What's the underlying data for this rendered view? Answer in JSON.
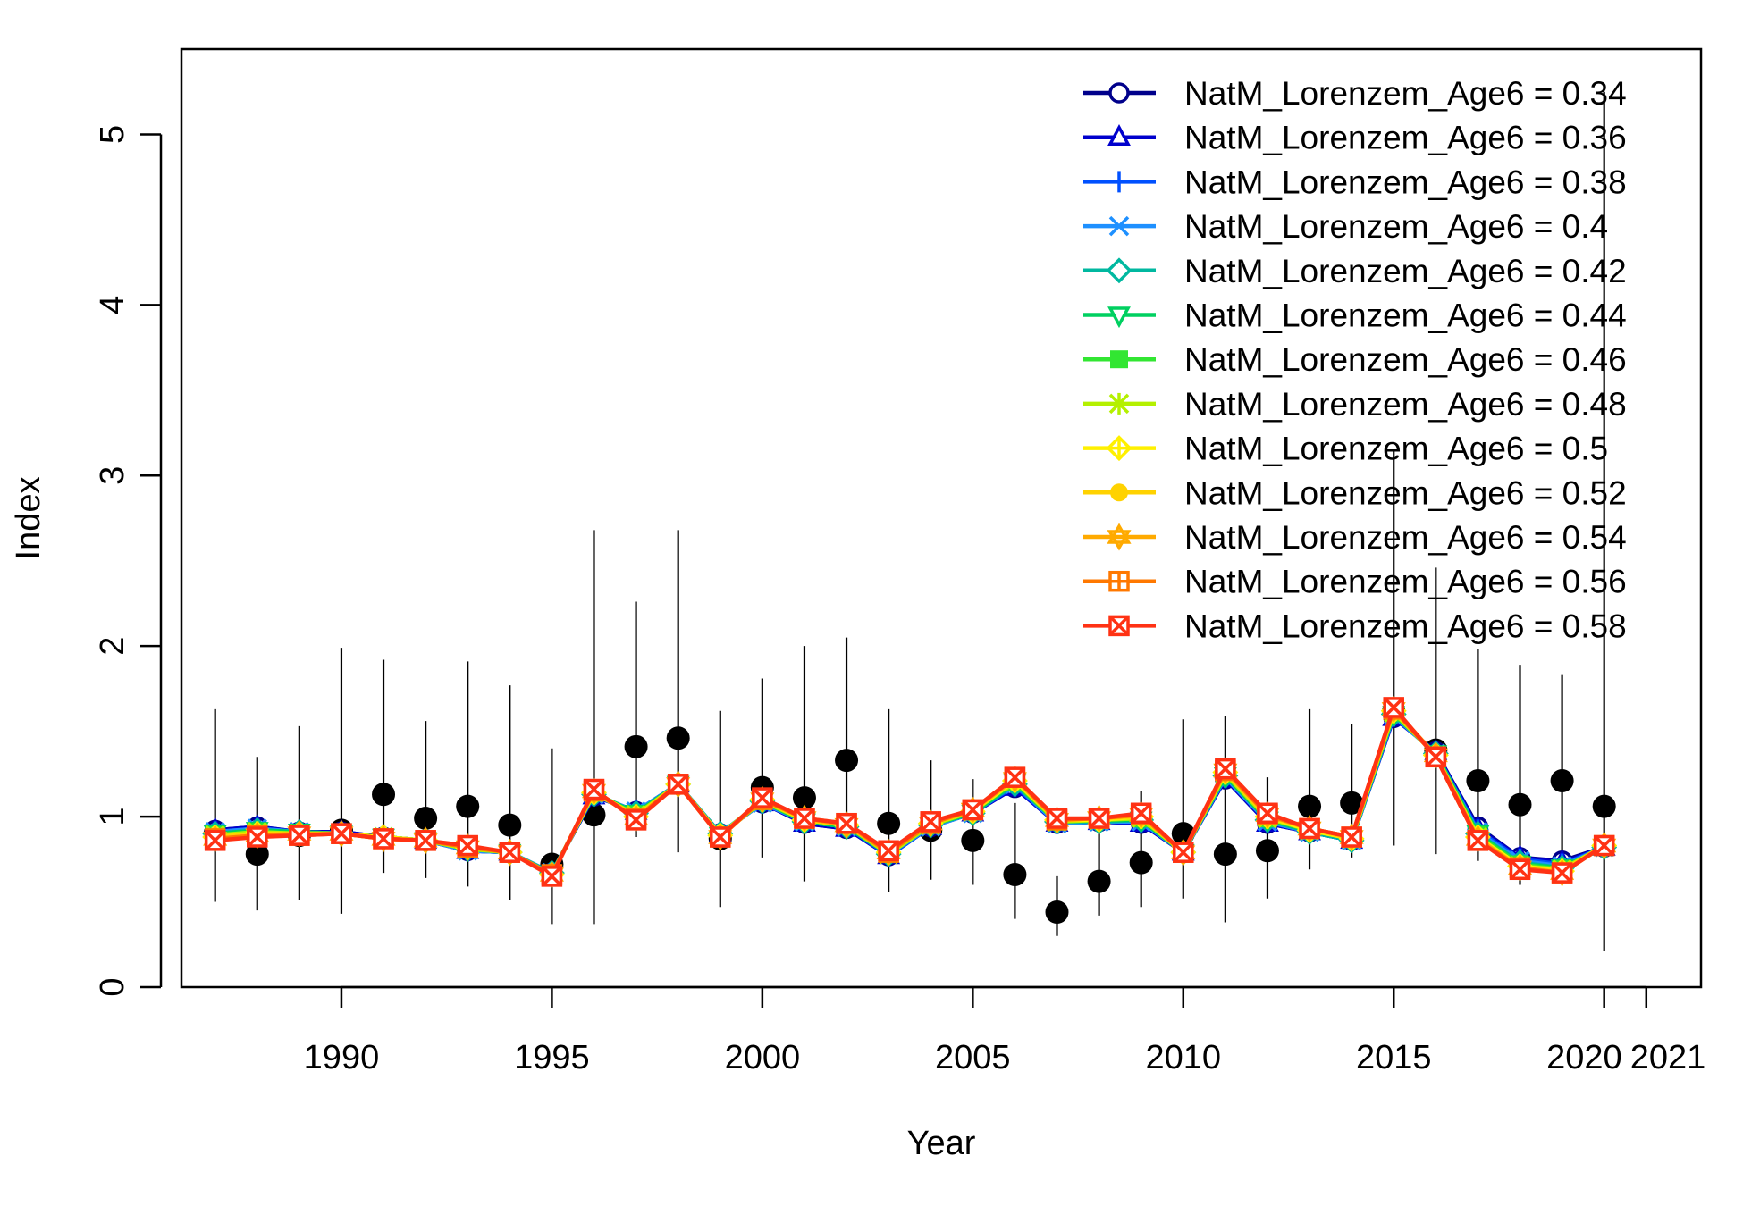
{
  "chart_data": {
    "type": "line",
    "title": "",
    "xlabel": "Year",
    "ylabel": "Index",
    "xlim": [
      1986.2,
      2022.3
    ],
    "ylim": [
      0,
      5.5
    ],
    "x_ticks": [
      1990,
      1995,
      2000,
      2005,
      2010,
      2015,
      2020,
      2021
    ],
    "x_tick_labels": [
      "1990",
      "1995",
      "2000",
      "2005",
      "2010",
      "2015",
      "2020",
      "2021"
    ],
    "y_ticks": [
      0,
      1,
      2,
      3,
      4,
      5
    ],
    "y_tick_labels": [
      "0",
      "1",
      "2",
      "3",
      "4",
      "5"
    ],
    "legend_position": "top-right",
    "grid": false,
    "x": [
      1987,
      1988,
      1989,
      1990,
      1991,
      1992,
      1993,
      1994,
      1995,
      1996,
      1997,
      1998,
      1999,
      2000,
      2001,
      2002,
      2003,
      2004,
      2005,
      2006,
      2007,
      2008,
      2009,
      2010,
      2011,
      2012,
      2013,
      2014,
      2015,
      2016,
      2017,
      2018,
      2019,
      2020
    ],
    "observed": {
      "values": [
        0.9,
        0.78,
        0.89,
        0.92,
        1.13,
        0.99,
        1.06,
        0.95,
        0.72,
        1.01,
        1.41,
        1.46,
        0.87,
        1.17,
        1.11,
        1.33,
        0.96,
        0.92,
        0.86,
        0.66,
        0.44,
        0.62,
        0.73,
        0.9,
        0.78,
        0.8,
        1.06,
        1.08,
        1.62,
        1.39,
        1.21,
        1.07,
        1.21,
        1.06
      ],
      "lower": [
        0.5,
        0.45,
        0.51,
        0.43,
        0.67,
        0.64,
        0.59,
        0.51,
        0.37,
        0.37,
        0.88,
        0.79,
        0.47,
        0.76,
        0.62,
        0.87,
        0.56,
        0.63,
        0.6,
        0.4,
        0.3,
        0.42,
        0.47,
        0.52,
        0.38,
        0.52,
        0.69,
        0.76,
        0.83,
        0.78,
        0.74,
        0.6,
        0.68,
        0.21
      ],
      "upper": [
        1.63,
        1.35,
        1.53,
        1.99,
        1.92,
        1.56,
        1.91,
        1.77,
        1.4,
        2.68,
        2.26,
        2.68,
        1.62,
        1.81,
        2.0,
        2.05,
        1.63,
        1.33,
        1.22,
        1.08,
        0.65,
        0.92,
        1.15,
        1.57,
        1.59,
        1.23,
        1.63,
        1.54,
        3.15,
        2.46,
        1.98,
        1.89,
        1.83,
        5.25
      ]
    },
    "series": [
      {
        "name": "NatM_Lorenzem_Age6 = 0.34",
        "color": "#00008B",
        "marker": "circle-open",
        "values": [
          0.92,
          0.94,
          0.91,
          0.91,
          0.88,
          0.86,
          0.8,
          0.79,
          0.67,
          1.12,
          1.03,
          1.19,
          0.9,
          1.08,
          0.96,
          0.93,
          0.77,
          0.94,
          1.02,
          1.17,
          0.96,
          0.97,
          0.96,
          0.79,
          1.22,
          0.96,
          0.91,
          0.86,
          1.58,
          1.38,
          0.94,
          0.76,
          0.74,
          0.82
        ]
      },
      {
        "name": "NatM_Lorenzem_Age6 = 0.36",
        "color": "#0000CD",
        "marker": "triangle-open",
        "values": [
          0.92,
          0.94,
          0.91,
          0.91,
          0.88,
          0.86,
          0.8,
          0.79,
          0.67,
          1.12,
          1.03,
          1.19,
          0.9,
          1.08,
          0.96,
          0.93,
          0.77,
          0.94,
          1.02,
          1.17,
          0.96,
          0.97,
          0.96,
          0.79,
          1.22,
          0.96,
          0.91,
          0.86,
          1.58,
          1.38,
          0.93,
          0.76,
          0.73,
          0.82
        ]
      },
      {
        "name": "NatM_Lorenzem_Age6 = 0.38",
        "color": "#0050FF",
        "marker": "plus",
        "values": [
          0.91,
          0.93,
          0.91,
          0.9,
          0.88,
          0.86,
          0.8,
          0.79,
          0.67,
          1.13,
          1.03,
          1.19,
          0.9,
          1.08,
          0.97,
          0.94,
          0.77,
          0.94,
          1.02,
          1.18,
          0.96,
          0.97,
          0.97,
          0.79,
          1.23,
          0.97,
          0.91,
          0.86,
          1.59,
          1.37,
          0.92,
          0.75,
          0.72,
          0.82
        ]
      },
      {
        "name": "NatM_Lorenzem_Age6 = 0.4",
        "color": "#1E90FF",
        "marker": "cross",
        "values": [
          0.91,
          0.93,
          0.91,
          0.9,
          0.88,
          0.86,
          0.8,
          0.79,
          0.67,
          1.13,
          1.03,
          1.19,
          0.9,
          1.08,
          0.97,
          0.94,
          0.78,
          0.94,
          1.02,
          1.19,
          0.96,
          0.97,
          0.97,
          0.79,
          1.23,
          0.97,
          0.91,
          0.86,
          1.59,
          1.37,
          0.91,
          0.74,
          0.71,
          0.82
        ]
      },
      {
        "name": "NatM_Lorenzem_Age6 = 0.42",
        "color": "#00B8A0",
        "marker": "diamond-open",
        "values": [
          0.9,
          0.92,
          0.91,
          0.9,
          0.88,
          0.86,
          0.81,
          0.79,
          0.67,
          1.13,
          1.02,
          1.19,
          0.9,
          1.09,
          0.97,
          0.94,
          0.78,
          0.95,
          1.02,
          1.19,
          0.97,
          0.97,
          0.98,
          0.79,
          1.24,
          0.98,
          0.91,
          0.86,
          1.6,
          1.37,
          0.9,
          0.73,
          0.7,
          0.82
        ]
      },
      {
        "name": "NatM_Lorenzem_Age6 = 0.44",
        "color": "#00D060",
        "marker": "triangle-down-open",
        "values": [
          0.9,
          0.92,
          0.91,
          0.9,
          0.88,
          0.86,
          0.81,
          0.79,
          0.66,
          1.14,
          1.02,
          1.19,
          0.89,
          1.09,
          0.97,
          0.94,
          0.78,
          0.95,
          1.02,
          1.2,
          0.97,
          0.98,
          0.98,
          0.79,
          1.24,
          0.98,
          0.92,
          0.87,
          1.6,
          1.37,
          0.9,
          0.72,
          0.7,
          0.82
        ]
      },
      {
        "name": "NatM_Lorenzem_Age6 = 0.46",
        "color": "#32E632",
        "marker": "square-filled",
        "values": [
          0.89,
          0.91,
          0.9,
          0.9,
          0.88,
          0.86,
          0.81,
          0.79,
          0.66,
          1.14,
          1.01,
          1.19,
          0.89,
          1.09,
          0.98,
          0.95,
          0.78,
          0.95,
          1.03,
          1.2,
          0.97,
          0.98,
          0.99,
          0.79,
          1.25,
          0.99,
          0.92,
          0.87,
          1.61,
          1.36,
          0.89,
          0.72,
          0.69,
          0.82
        ]
      },
      {
        "name": "NatM_Lorenzem_Age6 = 0.48",
        "color": "#B4F000",
        "marker": "asterisk",
        "values": [
          0.89,
          0.91,
          0.9,
          0.9,
          0.88,
          0.86,
          0.81,
          0.79,
          0.66,
          1.14,
          1.01,
          1.19,
          0.89,
          1.09,
          0.98,
          0.95,
          0.78,
          0.95,
          1.03,
          1.21,
          0.97,
          0.98,
          0.99,
          0.79,
          1.25,
          0.99,
          0.92,
          0.87,
          1.61,
          1.36,
          0.88,
          0.71,
          0.69,
          0.83
        ]
      },
      {
        "name": "NatM_Lorenzem_Age6 = 0.5",
        "color": "#FFF000",
        "marker": "diamond-plus",
        "values": [
          0.88,
          0.9,
          0.9,
          0.9,
          0.88,
          0.86,
          0.82,
          0.79,
          0.66,
          1.14,
          1.0,
          1.19,
          0.89,
          1.1,
          0.98,
          0.95,
          0.79,
          0.96,
          1.03,
          1.21,
          0.98,
          0.98,
          1.0,
          0.79,
          1.26,
          1.0,
          0.92,
          0.87,
          1.62,
          1.36,
          0.88,
          0.71,
          0.68,
          0.83
        ]
      },
      {
        "name": "NatM_Lorenzem_Age6 = 0.52",
        "color": "#FFD200",
        "marker": "circle-filled",
        "values": [
          0.88,
          0.9,
          0.9,
          0.9,
          0.87,
          0.86,
          0.82,
          0.79,
          0.66,
          1.15,
          1.0,
          1.19,
          0.89,
          1.1,
          0.98,
          0.95,
          0.79,
          0.96,
          1.03,
          1.22,
          0.98,
          0.99,
          1.0,
          0.79,
          1.26,
          1.0,
          0.93,
          0.87,
          1.62,
          1.36,
          0.87,
          0.7,
          0.68,
          0.83
        ]
      },
      {
        "name": "NatM_Lorenzem_Age6 = 0.54",
        "color": "#FFAA00",
        "marker": "star-of-david",
        "values": [
          0.87,
          0.89,
          0.9,
          0.9,
          0.87,
          0.86,
          0.82,
          0.79,
          0.66,
          1.15,
          0.99,
          1.19,
          0.88,
          1.1,
          0.99,
          0.95,
          0.79,
          0.96,
          1.04,
          1.22,
          0.98,
          0.99,
          1.01,
          0.79,
          1.27,
          1.01,
          0.93,
          0.88,
          1.63,
          1.36,
          0.87,
          0.7,
          0.67,
          0.83
        ]
      },
      {
        "name": "NatM_Lorenzem_Age6 = 0.56",
        "color": "#FF7800",
        "marker": "square-plus",
        "values": [
          0.87,
          0.89,
          0.89,
          0.9,
          0.87,
          0.86,
          0.82,
          0.79,
          0.66,
          1.15,
          0.99,
          1.19,
          0.88,
          1.1,
          0.99,
          0.96,
          0.79,
          0.96,
          1.04,
          1.23,
          0.98,
          0.99,
          1.01,
          0.79,
          1.27,
          1.01,
          0.93,
          0.88,
          1.63,
          1.35,
          0.86,
          0.7,
          0.67,
          0.83
        ]
      },
      {
        "name": "NatM_Lorenzem_Age6 = 0.58",
        "color": "#FF3214",
        "marker": "square-cross",
        "values": [
          0.86,
          0.88,
          0.89,
          0.9,
          0.87,
          0.86,
          0.83,
          0.79,
          0.65,
          1.16,
          0.98,
          1.19,
          0.88,
          1.11,
          0.99,
          0.96,
          0.8,
          0.97,
          1.04,
          1.23,
          0.99,
          0.99,
          1.02,
          0.79,
          1.28,
          1.02,
          0.93,
          0.88,
          1.64,
          1.35,
          0.86,
          0.69,
          0.67,
          0.83
        ]
      }
    ]
  }
}
